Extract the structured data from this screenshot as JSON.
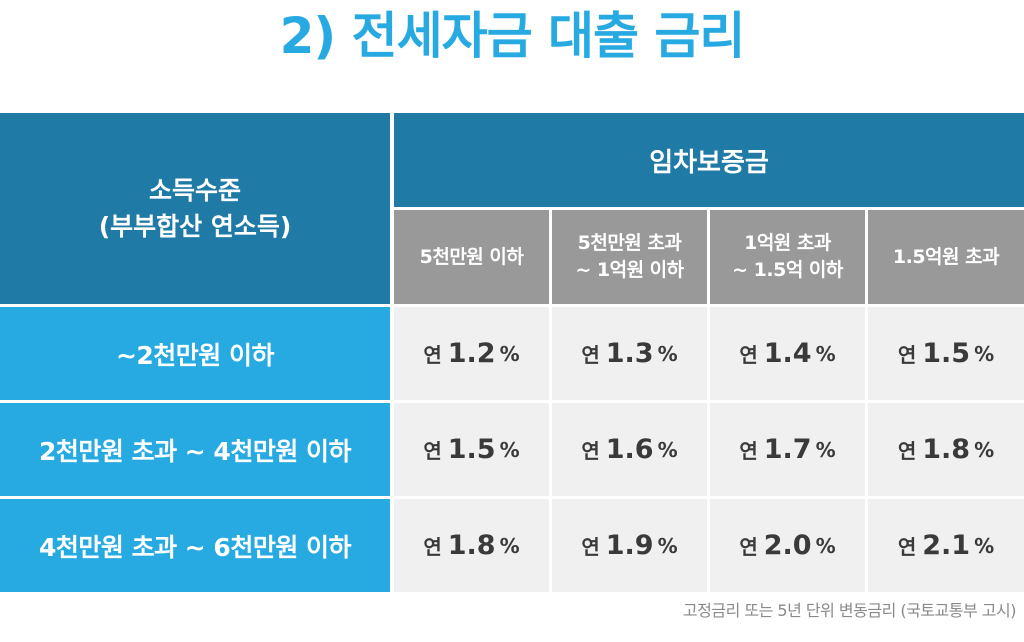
{
  "title": "2) 전세자금 대출 금리",
  "table": {
    "income_header": [
      "소득수준",
      "(부부합산 연소득)"
    ],
    "deposit_header": "임차보증금",
    "bands": [
      [
        "5천만원 이하"
      ],
      [
        "5천만원 초과",
        "~ 1억원 이하"
      ],
      [
        "1억원 초과",
        "~ 1.5억 이하"
      ],
      [
        "1.5억원 초과"
      ]
    ],
    "rows": [
      {
        "label": "~2천만원 이하",
        "values": [
          "1.2",
          "1.3",
          "1.4",
          "1.5"
        ]
      },
      {
        "label": "2천만원 초과 ~ 4천만원 이하",
        "values": [
          "1.5",
          "1.6",
          "1.7",
          "1.8"
        ]
      },
      {
        "label": "4천만원 초과 ~ 6천만원 이하",
        "values": [
          "1.8",
          "1.9",
          "2.0",
          "2.1"
        ]
      }
    ],
    "value_prefix": "연",
    "value_suffix": "%"
  },
  "note": "고정금리 또는 5년 단위 변동금리 (국토교통부 고시)"
}
